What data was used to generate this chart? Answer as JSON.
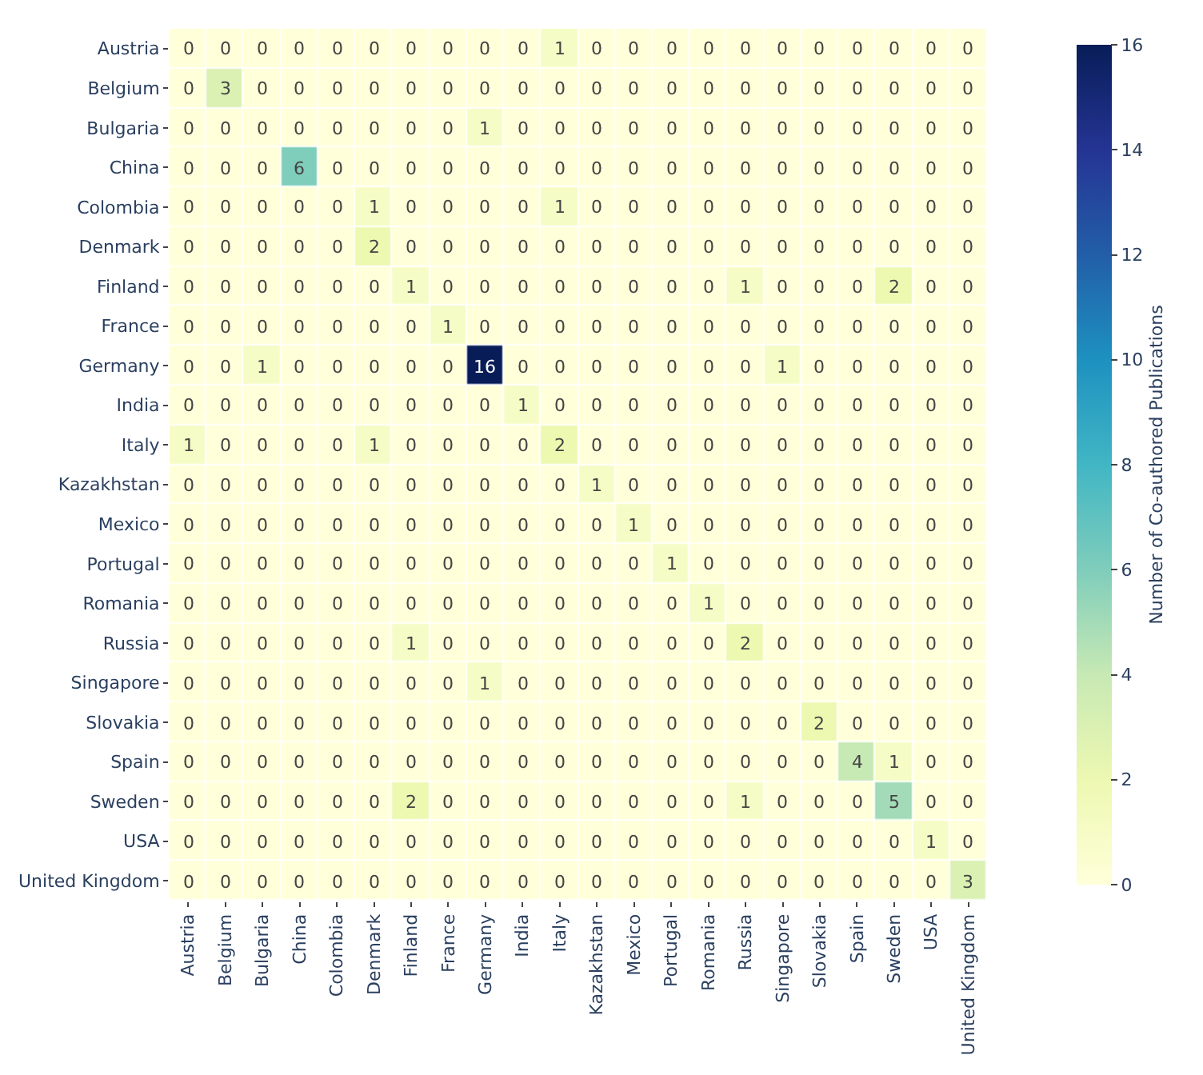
{
  "chart_data": {
    "type": "heatmap",
    "categories": [
      "Austria",
      "Belgium",
      "Bulgaria",
      "China",
      "Colombia",
      "Denmark",
      "Finland",
      "France",
      "Germany",
      "India",
      "Italy",
      "Kazakhstan",
      "Mexico",
      "Portugal",
      "Romania",
      "Russia",
      "Singapore",
      "Slovakia",
      "Spain",
      "Sweden",
      "USA",
      "United Kingdom"
    ],
    "y_categories": [
      "Austria",
      "Belgium",
      "Bulgaria",
      "China",
      "Colombia",
      "Denmark",
      "Finland",
      "France",
      "Germany",
      "India",
      "Italy",
      "Kazakhstan",
      "Mexico",
      "Portugal",
      "Romania",
      "Russia",
      "Singapore",
      "Slovakia",
      "Spain",
      "Sweden",
      "USA",
      "United Kingdom"
    ],
    "cells": [
      [
        0,
        0,
        0,
        0,
        0,
        0,
        0,
        0,
        0,
        0,
        1,
        0,
        0,
        0,
        0,
        0,
        0,
        0,
        0,
        0,
        0,
        0
      ],
      [
        0,
        3,
        0,
        0,
        0,
        0,
        0,
        0,
        0,
        0,
        0,
        0,
        0,
        0,
        0,
        0,
        0,
        0,
        0,
        0,
        0,
        0
      ],
      [
        0,
        0,
        0,
        0,
        0,
        0,
        0,
        0,
        1,
        0,
        0,
        0,
        0,
        0,
        0,
        0,
        0,
        0,
        0,
        0,
        0,
        0
      ],
      [
        0,
        0,
        0,
        6,
        0,
        0,
        0,
        0,
        0,
        0,
        0,
        0,
        0,
        0,
        0,
        0,
        0,
        0,
        0,
        0,
        0,
        0
      ],
      [
        0,
        0,
        0,
        0,
        0,
        1,
        0,
        0,
        0,
        0,
        1,
        0,
        0,
        0,
        0,
        0,
        0,
        0,
        0,
        0,
        0,
        0
      ],
      [
        0,
        0,
        0,
        0,
        0,
        2,
        0,
        0,
        0,
        0,
        0,
        0,
        0,
        0,
        0,
        0,
        0,
        0,
        0,
        0,
        0,
        0
      ],
      [
        0,
        0,
        0,
        0,
        0,
        0,
        1,
        0,
        0,
        0,
        0,
        0,
        0,
        0,
        0,
        1,
        0,
        0,
        0,
        2,
        0,
        0
      ],
      [
        0,
        0,
        0,
        0,
        0,
        0,
        0,
        1,
        0,
        0,
        0,
        0,
        0,
        0,
        0,
        0,
        0,
        0,
        0,
        0,
        0,
        0
      ],
      [
        0,
        0,
        1,
        0,
        0,
        0,
        0,
        0,
        16,
        0,
        0,
        0,
        0,
        0,
        0,
        0,
        1,
        0,
        0,
        0,
        0,
        0
      ],
      [
        0,
        0,
        0,
        0,
        0,
        0,
        0,
        0,
        0,
        1,
        0,
        0,
        0,
        0,
        0,
        0,
        0,
        0,
        0,
        0,
        0,
        0
      ],
      [
        1,
        0,
        0,
        0,
        0,
        1,
        0,
        0,
        0,
        0,
        2,
        0,
        0,
        0,
        0,
        0,
        0,
        0,
        0,
        0,
        0,
        0
      ],
      [
        0,
        0,
        0,
        0,
        0,
        0,
        0,
        0,
        0,
        0,
        0,
        1,
        0,
        0,
        0,
        0,
        0,
        0,
        0,
        0,
        0,
        0
      ],
      [
        0,
        0,
        0,
        0,
        0,
        0,
        0,
        0,
        0,
        0,
        0,
        0,
        1,
        0,
        0,
        0,
        0,
        0,
        0,
        0,
        0,
        0
      ],
      [
        0,
        0,
        0,
        0,
        0,
        0,
        0,
        0,
        0,
        0,
        0,
        0,
        0,
        1,
        0,
        0,
        0,
        0,
        0,
        0,
        0,
        0
      ],
      [
        0,
        0,
        0,
        0,
        0,
        0,
        0,
        0,
        0,
        0,
        0,
        0,
        0,
        0,
        1,
        0,
        0,
        0,
        0,
        0,
        0,
        0
      ],
      [
        0,
        0,
        0,
        0,
        0,
        0,
        1,
        0,
        0,
        0,
        0,
        0,
        0,
        0,
        0,
        2,
        0,
        0,
        0,
        0,
        0,
        0
      ],
      [
        0,
        0,
        0,
        0,
        0,
        0,
        0,
        0,
        1,
        0,
        0,
        0,
        0,
        0,
        0,
        0,
        0,
        0,
        0,
        0,
        0,
        0
      ],
      [
        0,
        0,
        0,
        0,
        0,
        0,
        0,
        0,
        0,
        0,
        0,
        0,
        0,
        0,
        0,
        0,
        0,
        2,
        0,
        0,
        0,
        0
      ],
      [
        0,
        0,
        0,
        0,
        0,
        0,
        0,
        0,
        0,
        0,
        0,
        0,
        0,
        0,
        0,
        0,
        0,
        0,
        4,
        1,
        0,
        0
      ],
      [
        0,
        0,
        0,
        0,
        0,
        0,
        2,
        0,
        0,
        0,
        0,
        0,
        0,
        0,
        0,
        1,
        0,
        0,
        0,
        5,
        0,
        0
      ],
      [
        0,
        0,
        0,
        0,
        0,
        0,
        0,
        0,
        0,
        0,
        0,
        0,
        0,
        0,
        0,
        0,
        0,
        0,
        0,
        0,
        1,
        0
      ],
      [
        0,
        0,
        0,
        0,
        0,
        0,
        0,
        0,
        0,
        0,
        0,
        0,
        0,
        0,
        0,
        0,
        0,
        0,
        0,
        0,
        0,
        3
      ]
    ],
    "clabel": "Number of Co-authored Publications",
    "clim": [
      0,
      16
    ],
    "cticks": [
      0,
      2,
      4,
      6,
      8,
      10,
      12,
      14,
      16
    ],
    "data_labels": true
  }
}
